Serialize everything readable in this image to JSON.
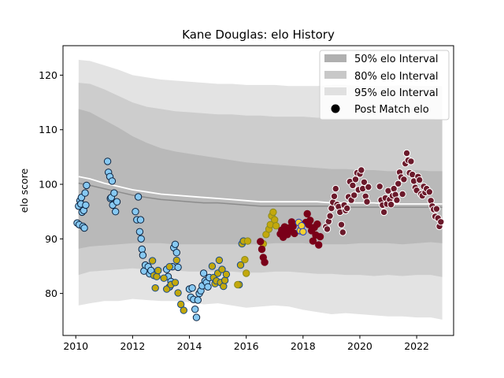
{
  "chart_data": {
    "type": "scatter",
    "title": "Kane Douglas: elo History",
    "xlabel": "",
    "ylabel": "elo score",
    "xlim": [
      2009.55,
      2023.3
    ],
    "ylim": [
      72.3,
      125.4
    ],
    "xticks": [
      2010,
      2012,
      2014,
      2016,
      2018,
      2020,
      2022
    ],
    "yticks": [
      80,
      90,
      100,
      110,
      120
    ],
    "grid": false,
    "legend_position": "top-right",
    "legend": [
      {
        "label": "50% elo Interval",
        "kind": "band",
        "color": "#b0b0b0"
      },
      {
        "label": "80% elo Interval",
        "kind": "band",
        "color": "#c8c8c8"
      },
      {
        "label": "95% elo Interval",
        "kind": "band",
        "color": "#e0e0e0"
      },
      {
        "label": "Post Match elo",
        "kind": "point",
        "color": "#000000"
      }
    ],
    "band_colors": {
      "i95": "#e3e3e3",
      "i80": "#cdcdcd",
      "i50": "#b9b9b9"
    },
    "intervals": {
      "x": [
        2010.1,
        2010.5,
        2011.0,
        2011.5,
        2012.0,
        2012.5,
        2013.0,
        2013.5,
        2014.0,
        2014.5,
        2015.0,
        2015.5,
        2016.0,
        2016.5,
        2017.0,
        2017.5,
        2018.0,
        2018.5,
        2019.0,
        2019.5,
        2020.0,
        2020.5,
        2021.0,
        2021.5,
        2022.0,
        2022.5,
        2022.9
      ],
      "lo95": [
        77.8,
        78.2,
        78.6,
        78.6,
        79.0,
        78.8,
        78.6,
        78.6,
        78.4,
        78.0,
        78.2,
        77.8,
        77.4,
        77.6,
        77.8,
        77.6,
        77.0,
        76.6,
        76.2,
        76.4,
        76.2,
        76.0,
        75.8,
        75.8,
        75.6,
        75.6,
        75.2
      ],
      "lo80": [
        83.4,
        84.0,
        84.2,
        84.4,
        84.6,
        84.4,
        84.2,
        84.2,
        84.0,
        84.0,
        84.0,
        84.0,
        83.8,
        83.8,
        84.0,
        84.0,
        83.8,
        83.6,
        83.6,
        83.4,
        83.4,
        83.2,
        83.4,
        83.2,
        83.4,
        83.4,
        83.0
      ],
      "lo50": [
        88.2,
        88.6,
        88.8,
        89.0,
        89.2,
        89.2,
        89.2,
        89.0,
        89.0,
        89.0,
        89.0,
        89.0,
        89.0,
        89.0,
        89.2,
        89.2,
        89.2,
        89.0,
        89.0,
        89.0,
        89.2,
        89.2,
        89.2,
        89.0,
        89.2,
        89.4,
        89.2
      ],
      "hi50": [
        113.8,
        113.2,
        111.8,
        110.4,
        108.8,
        107.6,
        106.6,
        106.0,
        105.6,
        105.2,
        104.8,
        104.4,
        104.0,
        103.8,
        103.6,
        103.4,
        103.2,
        103.0,
        102.8,
        102.8,
        102.6,
        102.6,
        102.4,
        102.4,
        102.6,
        102.4,
        102.4
      ],
      "hi80": [
        118.6,
        118.4,
        117.4,
        116.2,
        115.0,
        114.2,
        113.8,
        113.4,
        113.2,
        113.0,
        112.8,
        112.8,
        112.6,
        112.6,
        112.4,
        112.4,
        112.4,
        112.2,
        112.2,
        112.2,
        112.0,
        112.0,
        112.0,
        112.2,
        112.0,
        112.0,
        111.8
      ],
      "hi95": [
        122.8,
        122.6,
        121.8,
        121.0,
        120.0,
        119.6,
        119.2,
        119.0,
        118.8,
        118.6,
        118.4,
        118.4,
        118.2,
        118.2,
        118.2,
        118.0,
        118.0,
        118.0,
        118.2,
        118.2,
        118.0,
        118.0,
        118.0,
        118.2,
        118.0,
        118.0,
        118.0
      ],
      "mean": [
        101.4,
        101.0,
        100.2,
        99.6,
        99.0,
        98.6,
        98.2,
        98.0,
        97.8,
        97.6,
        97.4,
        97.2,
        97.0,
        96.8,
        96.8,
        96.8,
        96.8,
        96.8,
        96.6,
        96.6,
        96.6,
        96.6,
        96.4,
        96.4,
        96.4,
        96.4,
        96.4
      ],
      "median": [
        100.2,
        99.8,
        99.2,
        98.6,
        98.0,
        97.6,
        97.2,
        97.0,
        96.8,
        96.6,
        96.6,
        96.4,
        96.2,
        96.0,
        96.0,
        96.0,
        96.0,
        96.0,
        96.0,
        95.8,
        95.8,
        95.8,
        95.8,
        95.8,
        95.8,
        95.8,
        95.8
      ]
    },
    "series": [
      {
        "face": "#87c9f2",
        "edge": "#0c2340",
        "x": [
          2010.05,
          2010.1,
          2010.12,
          2010.15,
          2010.18,
          2010.2,
          2010.22,
          2010.25,
          2010.28,
          2010.3,
          2010.33,
          2010.35,
          2010.38,
          2011.12,
          2011.15,
          2011.2,
          2011.22,
          2011.25,
          2011.28,
          2011.3,
          2011.35,
          2011.4,
          2011.45,
          2012.1,
          2012.15,
          2012.2,
          2012.25,
          2012.28,
          2012.3,
          2012.33,
          2012.36,
          2012.4,
          2012.45,
          2012.55,
          2012.6,
          2012.65,
          2013.2,
          2013.25,
          2013.3,
          2013.35,
          2013.4,
          2013.45,
          2013.5,
          2013.55,
          2013.6,
          2014.0,
          2014.05,
          2014.1,
          2014.15,
          2014.2,
          2014.25,
          2014.3,
          2014.35,
          2014.4,
          2014.45,
          2014.5,
          2014.55,
          2014.6,
          2014.65,
          2014.7
        ],
        "y": [
          92.9,
          96.0,
          92.6,
          97.0,
          96.4,
          97.6,
          94.9,
          92.3,
          95.2,
          92.0,
          98.4,
          96.2,
          99.8,
          104.2,
          102.2,
          101.4,
          97.4,
          97.6,
          100.6,
          96.2,
          98.4,
          95.0,
          96.8,
          95.0,
          93.5,
          97.7,
          91.3,
          93.5,
          90.0,
          88.1,
          87.0,
          84.1,
          85.2,
          84.9,
          83.6,
          84.2,
          84.4,
          83.1,
          81.2,
          82.2,
          84.9,
          88.4,
          89.0,
          87.5,
          84.8,
          80.8,
          79.3,
          81.0,
          78.9,
          77.1,
          75.6,
          78.8,
          80.0,
          80.5,
          81.4,
          83.7,
          82.3,
          82.0,
          81.2,
          82.9
        ]
      },
      {
        "face": "#c3a80c",
        "edge": "#154a8e",
        "x": [
          2012.7,
          2012.75,
          2012.8,
          2012.85,
          2012.9,
          2013.1,
          2013.2,
          2013.3,
          2013.35,
          2013.5,
          2013.55,
          2013.6,
          2013.7,
          2013.8,
          2014.8,
          2014.85,
          2014.9,
          2014.95,
          2015.0,
          2015.05,
          2015.1,
          2015.15,
          2015.2,
          2015.25,
          2015.3,
          2015.75,
          2015.8,
          2015.85,
          2015.9
        ],
        "y": [
          86.0,
          83.3,
          81.0,
          83.1,
          84.2,
          82.8,
          80.8,
          84.9,
          81.6,
          82.0,
          86.1,
          80.1,
          78.0,
          76.9,
          85.0,
          82.9,
          81.8,
          82.3,
          83.7,
          86.1,
          82.0,
          84.4,
          81.3,
          82.4,
          83.5,
          81.6,
          85.2,
          89.1,
          89.6
        ]
      },
      {
        "face": "#c3a80c",
        "edge": "#8a8a20",
        "x": [
          2015.95,
          2016.0,
          2016.6,
          2016.7,
          2016.8,
          2016.85,
          2016.9,
          2016.95,
          2017.0,
          2017.05,
          2015.7,
          2016.05
        ],
        "y": [
          86.2,
          83.7,
          89.1,
          90.8,
          91.8,
          92.6,
          94.2,
          94.9,
          93.5,
          92.4,
          81.6,
          89.6
        ]
      },
      {
        "face": "#7a0019",
        "edge": "#7a0019",
        "x": [
          2016.5,
          2016.55,
          2016.6,
          2016.65,
          2017.2,
          2017.25,
          2017.3,
          2017.35,
          2017.4,
          2017.45,
          2017.5,
          2017.55,
          2017.6,
          2017.65,
          2017.7,
          2018.1,
          2018.15,
          2018.2,
          2018.25,
          2018.3,
          2018.35,
          2018.4,
          2018.45,
          2018.5,
          2018.55,
          2018.6
        ],
        "y": [
          89.5,
          88.1,
          86.6,
          85.7,
          90.9,
          91.6,
          90.3,
          92.2,
          91.4,
          90.8,
          92.0,
          91.5,
          93.1,
          92.3,
          91.0,
          93.0,
          94.6,
          92.6,
          93.4,
          91.5,
          89.6,
          92.1,
          90.7,
          92.7,
          88.9,
          90.4
        ]
      },
      {
        "face": "#f5d130",
        "edge": "#1e3cc8",
        "x": [
          2017.85,
          2017.9,
          2017.95,
          2018.0
        ],
        "y": [
          93.0,
          91.5,
          92.4,
          91.3
        ]
      },
      {
        "face": "#6b1a2b",
        "edge": "#ffffff",
        "x": [
          2018.8,
          2018.85,
          2018.9,
          2018.95,
          2019.0,
          2019.05,
          2019.1,
          2019.15,
          2019.2,
          2019.25,
          2019.3,
          2019.35,
          2019.4,
          2019.45,
          2019.5,
          2019.55,
          2019.6,
          2019.65,
          2019.7,
          2019.75,
          2019.8,
          2019.85,
          2019.9,
          2019.95,
          2020.0,
          2020.05,
          2020.1,
          2020.15,
          2020.2,
          2020.25,
          2020.3,
          2020.7,
          2020.75,
          2020.8,
          2020.85,
          2020.9,
          2020.95,
          2021.0,
          2021.05,
          2021.1,
          2021.15,
          2021.2,
          2021.25,
          2021.3,
          2021.35,
          2021.4,
          2021.45,
          2021.5,
          2021.55,
          2021.6,
          2021.65,
          2021.7,
          2021.75,
          2021.8,
          2021.85,
          2021.9,
          2021.95,
          2022.0,
          2022.05,
          2022.1,
          2022.15,
          2022.2,
          2022.25,
          2022.3,
          2022.35,
          2022.45,
          2022.5,
          2022.55,
          2022.6,
          2022.65,
          2022.7,
          2022.75,
          2022.8,
          2022.85
        ],
        "y": [
          92.2,
          91.8,
          93.2,
          94.2,
          95.6,
          96.7,
          97.8,
          99.2,
          96.3,
          95.9,
          94.9,
          92.6,
          91.2,
          96.2,
          95.2,
          95.6,
          97.7,
          100.5,
          97.1,
          99.8,
          98.0,
          100.9,
          102.1,
          99.0,
          101.9,
          102.6,
          99.2,
          100.4,
          97.8,
          96.8,
          99.5,
          99.6,
          97.1,
          96.2,
          94.9,
          97.5,
          96.4,
          98.8,
          97.2,
          96.3,
          97.9,
          99.2,
          98.1,
          97.1,
          100.1,
          102.2,
          101.3,
          98.2,
          100.9,
          103.8,
          105.7,
          104.4,
          102.1,
          104.2,
          101.8,
          100.6,
          99.4,
          98.9,
          101.4,
          100.8,
          98.2,
          97.9,
          99.6,
          98.5,
          99.2,
          98.6,
          97.0,
          96.0,
          95.4,
          94.1,
          95.5,
          93.8,
          92.3,
          93.1
        ]
      }
    ]
  }
}
